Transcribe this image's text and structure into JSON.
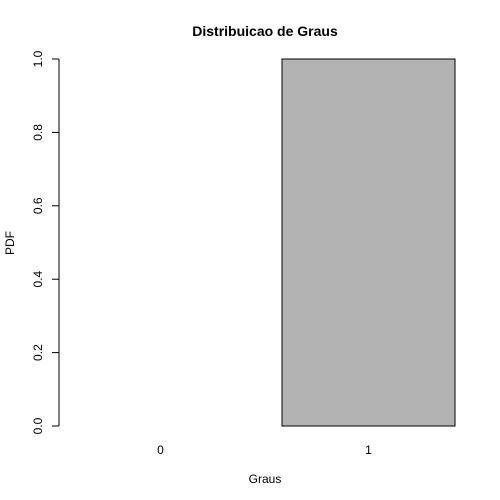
{
  "chart_data": {
    "type": "bar",
    "title": "Distribuicao de Graus",
    "xlabel": "Graus",
    "ylabel": "PDF",
    "categories": [
      "0",
      "1"
    ],
    "values": [
      0.0,
      1.0
    ],
    "ylim": [
      0,
      1
    ],
    "yticks": [
      "0.0",
      "0.2",
      "0.4",
      "0.6",
      "0.8",
      "1.0"
    ],
    "bar_color": "#b3b3b3",
    "grid": false
  }
}
